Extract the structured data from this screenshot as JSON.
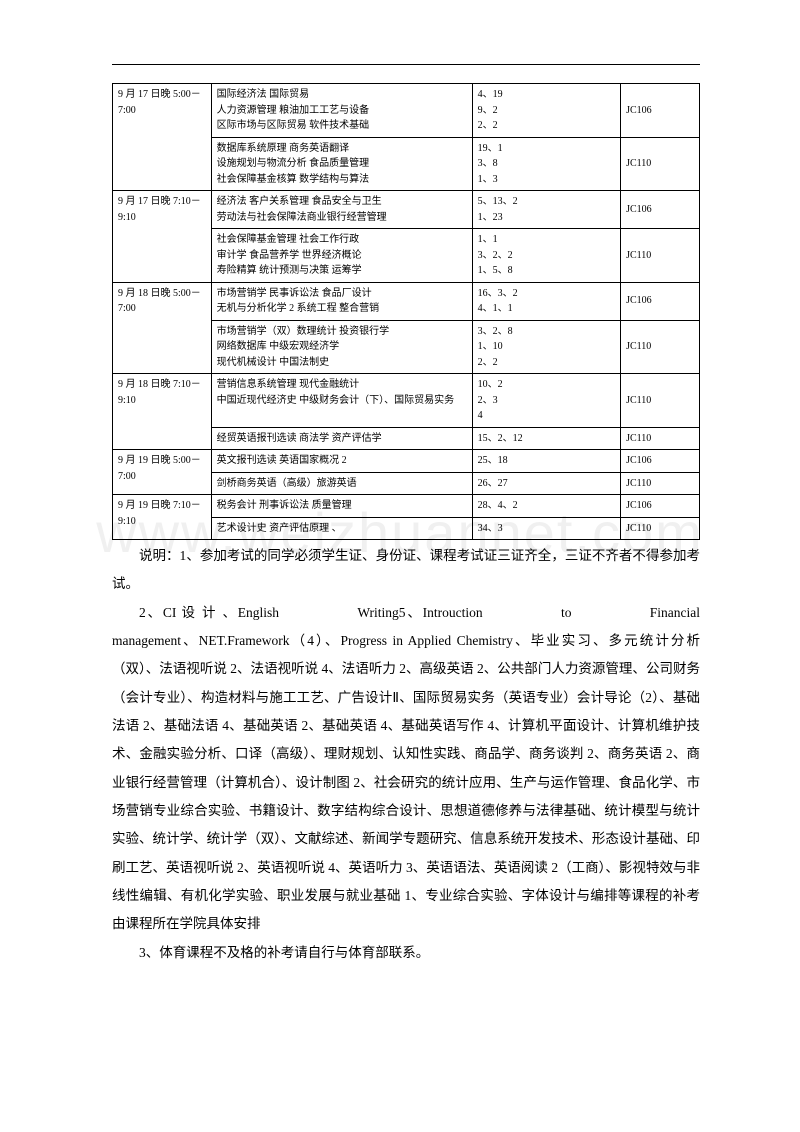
{
  "table": {
    "rows": [
      {
        "time": "9 月 17 日晚 5:00－7:00",
        "rowspan": 2,
        "course": "国际经济法 国际贸易\n人力资源管理 粮油加工工艺与设备\n区际市场与区际贸易 软件技术基础",
        "num": "4、19\n9、2\n2、2",
        "room": "JC106"
      },
      {
        "course": "数据库系统原理 商务英语翻译\n设施规划与物流分析 食品质量管理\n社会保障基金核算 数学结构与算法",
        "num": "19、1\n3、8\n1、3",
        "room": "JC110"
      },
      {
        "time": "9 月 17 日晚 7:10－9:10",
        "rowspan": 2,
        "course": "经济法 客户关系管理 食品安全与卫生\n劳动法与社会保障法商业银行经营管理",
        "num": "5、13、2\n1、23",
        "room": "JC106"
      },
      {
        "course": "社会保障基金管理 社会工作行政\n审计学 食品营养学 世界经济概论\n寿险精算 统计预测与决策 运筹学",
        "num": "1、1\n3、2、2\n1、5、8",
        "room": "JC110"
      },
      {
        "time": "9 月 18 日晚 5:00－7:00",
        "rowspan": 2,
        "course": "市场营销学 民事诉讼法 食品厂设计\n无机与分析化学 2  系统工程  整合营销",
        "num": "16、3、2\n4、1、1",
        "room": "JC106"
      },
      {
        "course": "市场营销学（双）数理统计   投资银行学\n网络数据库 中级宏观经济学\n现代机械设计 中国法制史",
        "num": "3、2、8\n1、10\n2、2",
        "room": "JC110"
      },
      {
        "time": "9 月 18 日晚 7:10－9:10",
        "rowspan": 2,
        "course": "营销信息系统管理 现代金融统计\n中国近现代经济史 中级财务会计（下）、国际贸易实务",
        "num": "10、2\n2、3\n4",
        "room": "JC110"
      },
      {
        "course": "经贸英语报刊选读 商法学 资产评估学",
        "num": "15、2、12",
        "room": "JC110"
      },
      {
        "time": "9 月 19 日晚 5:00－7:00",
        "rowspan": 2,
        "course": "英文报刊选读 英语国家概况 2",
        "num": "25、18",
        "room": "JC106"
      },
      {
        "course": "剑桥商务英语（高级）旅游英语",
        "num": "26、27",
        "room": "JC110"
      },
      {
        "time": "9 月 19 日晚 7:10－9:10",
        "rowspan": 2,
        "course": "税务会计 刑事诉讼法 质量管理",
        "num": "28、4、2",
        "room": "JC106"
      },
      {
        "course": "艺术设计史 资产评估原理 、",
        "num": "34、3",
        "room": "JC110"
      }
    ]
  },
  "notes": {
    "p1": "说明：1、参加考试的同学必须学生证、身份证、课程考试证三证齐全，三证不齐者不得参加考试。",
    "p2": "2、CI 设 计 、English　　　　　Writing5、Introuction　　　　　to　　　　　Financial management、NET.Framework（4）、Progress in Applied Chemistry、毕业实习、多元统计分析（双）、法语视听说 2、法语视听说 4、法语听力 2、高级英语 2、公共部门人力资源管理、公司财务（会计专业）、构造材料与施工工艺、广告设计Ⅱ、国际贸易实务（英语专业）会计导论（2）、基础法语 2、基础法语 4、基础英语 2、基础英语 4、基础英语写作 4、计算机平面设计、计算机维护技术、金融实验分析、口译（高级）、理财规划、认知性实践、商品学、商务谈判 2、商务英语 2、商业银行经营管理（计算机合）、设计制图 2、社会研究的统计应用、生产与运作管理、食品化学、市场营销专业综合实验、书籍设计、数字结构综合设计、思想道德修养与法律基础、统计模型与统计实验、统计学、统计学（双）、文献综述、新闻学专题研究、信息系统开发技术、形态设计基础、印刷工艺、英语视听说 2、英语视听说 4、英语听力 3、英语语法、英语阅读 2（工商）、影视特效与非线性编辑、有机化学实验、职业发展与就业基础 1、专业综合实验、字体设计与编排等课程的补考由课程所在学院具体安排",
    "p3": "3、体育课程不及格的补考请自行与体育部联系。"
  },
  "watermark": "www.weizhuannet.com"
}
